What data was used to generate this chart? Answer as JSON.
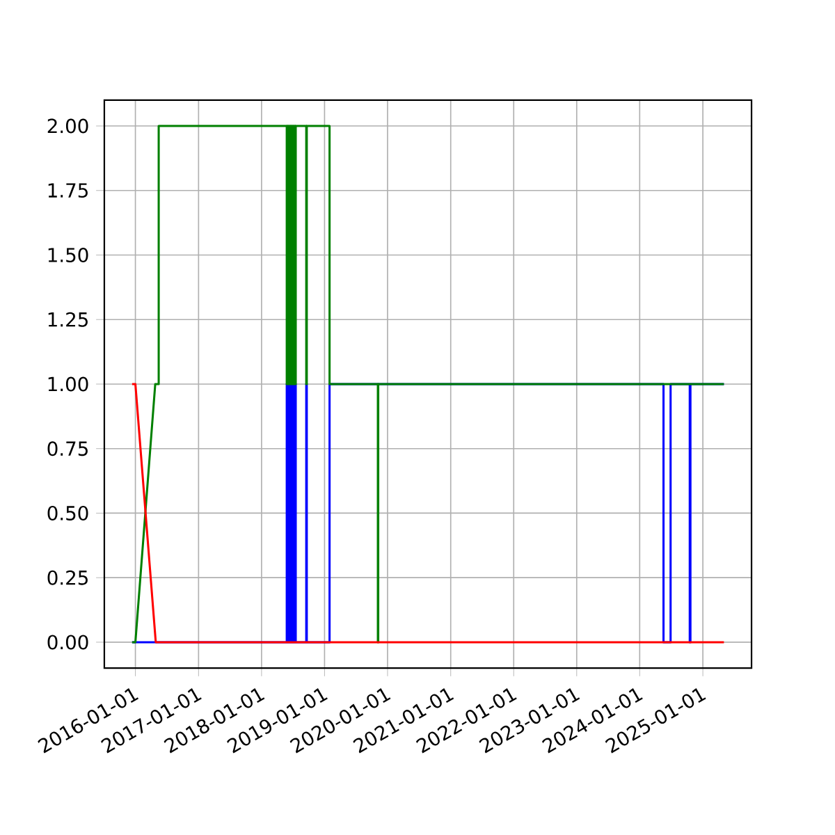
{
  "chart_data": {
    "type": "line",
    "grid": true,
    "line_style": "solid",
    "marker": "none",
    "xlim": [
      "2015-07-05",
      "2025-10-10"
    ],
    "ylim": [
      -0.1,
      2.1
    ],
    "xticks": [
      "2016-01-01",
      "2017-01-01",
      "2018-01-01",
      "2019-01-01",
      "2020-01-01",
      "2021-01-01",
      "2022-01-01",
      "2023-01-01",
      "2024-01-01",
      "2025-01-01"
    ],
    "yticks": [
      {
        "value": 0,
        "label": "0.00"
      },
      {
        "value": 0.25,
        "label": "0.25"
      },
      {
        "value": 0.5,
        "label": "0.50"
      },
      {
        "value": 0.75,
        "label": "0.75"
      },
      {
        "value": 1,
        "label": "1.00"
      },
      {
        "value": 1.25,
        "label": "1.25"
      },
      {
        "value": 1.5,
        "label": "1.50"
      },
      {
        "value": 1.75,
        "label": "1.75"
      },
      {
        "value": 2,
        "label": "2.00"
      }
    ],
    "series": [
      {
        "color": "#0000ff",
        "x": [
          "2015-12-13",
          "2018-05-27",
          "2018-05-27",
          "2018-05-30",
          "2018-05-30",
          "2018-06-03",
          "2018-06-03",
          "2018-06-06",
          "2018-06-06",
          "2018-06-10",
          "2018-06-10",
          "2018-06-13",
          "2018-06-13",
          "2018-06-17",
          "2018-06-17",
          "2018-06-20",
          "2018-06-20",
          "2018-06-24",
          "2018-06-24",
          "2018-06-27",
          "2018-06-27",
          "2018-07-01",
          "2018-07-01",
          "2018-07-04",
          "2018-07-04",
          "2018-07-08",
          "2018-07-08",
          "2018-07-11",
          "2018-07-11",
          "2018-07-15",
          "2018-07-15",
          "2018-07-18",
          "2018-07-18",
          "2018-09-17",
          "2018-09-17",
          "2018-09-20",
          "2018-09-20",
          "2019-01-30",
          "2019-01-30",
          "2024-05-18",
          "2024-05-18",
          "2024-06-28",
          "2024-06-28",
          "2024-10-17",
          "2024-10-17",
          "2024-10-21",
          "2024-10-21",
          "2025-05-03"
        ],
        "values": [
          0,
          0,
          1,
          1,
          0,
          0,
          1,
          1,
          0,
          0,
          1,
          1,
          0,
          0,
          1,
          1,
          0,
          0,
          1,
          1,
          0,
          0,
          1,
          1,
          0,
          0,
          1,
          1,
          0,
          0,
          1,
          1,
          0,
          0,
          1,
          1,
          0,
          0,
          1,
          1,
          0,
          0,
          1,
          1,
          0,
          0,
          1,
          1
        ]
      },
      {
        "color": "#008000",
        "x": [
          "2015-12-13",
          "2016-01-01",
          "2016-04-25",
          "2016-05-15",
          "2016-05-15",
          "2018-05-27",
          "2018-05-27",
          "2018-05-30",
          "2018-05-30",
          "2018-06-03",
          "2018-06-03",
          "2018-06-06",
          "2018-06-06",
          "2018-06-10",
          "2018-06-10",
          "2018-06-13",
          "2018-06-13",
          "2018-06-17",
          "2018-06-17",
          "2018-06-20",
          "2018-06-20",
          "2018-06-24",
          "2018-06-24",
          "2018-06-27",
          "2018-06-27",
          "2018-07-01",
          "2018-07-01",
          "2018-07-04",
          "2018-07-04",
          "2018-07-08",
          "2018-07-08",
          "2018-07-11",
          "2018-07-11",
          "2018-07-15",
          "2018-07-15",
          "2018-07-18",
          "2018-07-18",
          "2018-09-17",
          "2018-09-17",
          "2018-09-20",
          "2018-09-20",
          "2019-01-30",
          "2019-01-30",
          "2019-11-06",
          "2019-11-06",
          "2019-11-08",
          "2019-11-08",
          "2025-05-03"
        ],
        "values": [
          0,
          0,
          1,
          1,
          2,
          2,
          1,
          1,
          2,
          2,
          1,
          1,
          2,
          2,
          1,
          1,
          2,
          2,
          1,
          1,
          2,
          2,
          1,
          1,
          2,
          2,
          1,
          1,
          2,
          2,
          1,
          1,
          2,
          2,
          1,
          1,
          2,
          2,
          1,
          1,
          2,
          2,
          1,
          1,
          0,
          0,
          1,
          1
        ]
      },
      {
        "color": "#ff0000",
        "x": [
          "2015-12-13",
          "2016-01-01",
          "2016-04-28",
          "2025-05-03"
        ],
        "values": [
          1,
          1,
          0,
          0
        ]
      }
    ]
  }
}
